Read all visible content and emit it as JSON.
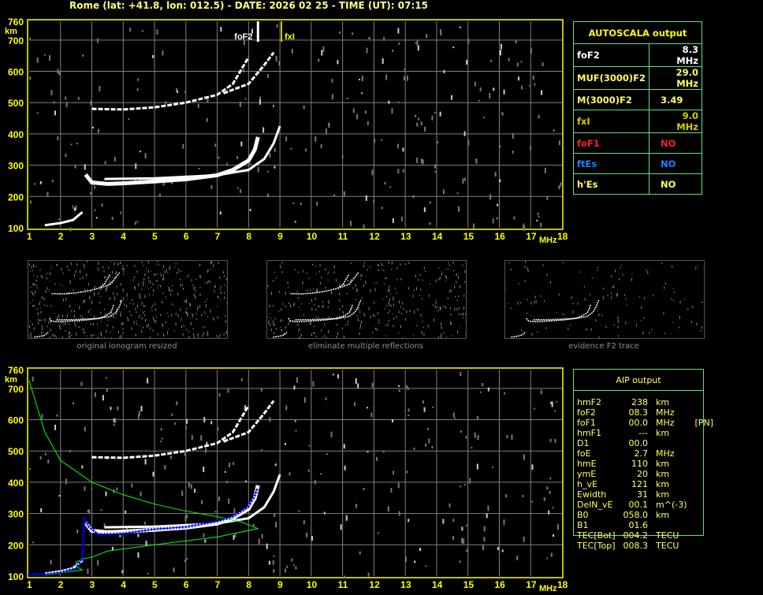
{
  "title": "Rome (lat: +41.8, lon: 012.5) - DATE: 2026 02 25 - TIME (UT): 07:15",
  "colors": {
    "axis": "#ffff00",
    "grid": "#808080",
    "trace": "#ffffff",
    "profile": "#00ff00",
    "aip_trace": "#0000ff"
  },
  "autoscala": {
    "header": "AUTOSCALA output",
    "rows": [
      {
        "label": "foF2",
        "value": "8.3 MHz",
        "color": "#ffffff"
      },
      {
        "label": "MUF(3000)F2",
        "value": "29.0 MHz",
        "color": "#ffff60"
      },
      {
        "label": "M(3000)F2",
        "value": "3.49",
        "color": "#ffff60"
      },
      {
        "label": "fxI",
        "value": "9.0 MHz",
        "color": "#d0d000"
      },
      {
        "label": "foF1",
        "value": "NO",
        "color": "#ff2020"
      },
      {
        "label": "ftEs",
        "value": "NO",
        "color": "#2080ff"
      },
      {
        "label": "h'Es",
        "value": "NO",
        "color": "#ffff60"
      }
    ]
  },
  "aip": {
    "header": "AIP output",
    "rows": [
      [
        "hmF2",
        "238",
        "km",
        ""
      ],
      [
        "foF2",
        "08.3",
        "MHz",
        ""
      ],
      [
        "foF1",
        "00.0",
        "MHz",
        "[PN]"
      ],
      [
        "hmF1",
        "---",
        "km",
        ""
      ],
      [
        "D1",
        "00.0",
        "",
        ""
      ],
      [
        "foE",
        "2.7",
        "MHz",
        ""
      ],
      [
        "hmE",
        "110",
        "km",
        ""
      ],
      [
        "ymE",
        "20",
        "km",
        ""
      ],
      [
        "h_vE",
        "121",
        "km",
        ""
      ],
      [
        "Ewidth",
        "31",
        "km",
        ""
      ],
      [
        "DelN_vE",
        "00.1",
        "m^(-3)",
        ""
      ],
      [
        "B0",
        "058.0",
        "km",
        ""
      ],
      [
        "B1",
        "01.6",
        "",
        ""
      ],
      [
        "TEC[Bot]",
        "004.2",
        "TECU",
        ""
      ],
      [
        "TEC[Top]",
        "008.3",
        "TECU",
        ""
      ]
    ]
  },
  "thumbnails": [
    {
      "caption": "original ionogram resized"
    },
    {
      "caption": "eliminate multiple reflections"
    },
    {
      "caption": "evidence F2 trace"
    }
  ],
  "chart_data": {
    "type": "scatter",
    "xlabel": "MHz",
    "ylabel": "km",
    "xlim": [
      1,
      18
    ],
    "ylim": [
      100,
      760
    ],
    "xticks": [
      "1",
      "2",
      "3",
      "4",
      "5",
      "6",
      "7",
      "8",
      "9",
      "10",
      "11",
      "12",
      "13",
      "14",
      "15",
      "16",
      "17",
      "18"
    ],
    "yticks": [
      "100",
      "200",
      "300",
      "400",
      "500",
      "600",
      "700",
      "760"
    ],
    "grid": true,
    "markers": [
      {
        "label": "foF2",
        "x": 8.3
      },
      {
        "label": "fxI",
        "x": 9.0
      }
    ],
    "traces": {
      "o_f2": [
        [
          2.8,
          270
        ],
        [
          3,
          245
        ],
        [
          3.5,
          240
        ],
        [
          4,
          242
        ],
        [
          5,
          248
        ],
        [
          6,
          255
        ],
        [
          7,
          268
        ],
        [
          7.5,
          285
        ],
        [
          8,
          315
        ],
        [
          8.2,
          350
        ],
        [
          8.3,
          390
        ]
      ],
      "x_f2": [
        [
          3.4,
          256
        ],
        [
          5,
          258
        ],
        [
          7,
          268
        ],
        [
          8,
          285
        ],
        [
          8.5,
          320
        ],
        [
          8.8,
          370
        ],
        [
          9,
          425
        ]
      ],
      "second_hop_o": [
        [
          3,
          480
        ],
        [
          4,
          478
        ],
        [
          5,
          485
        ],
        [
          6,
          500
        ],
        [
          7,
          525
        ],
        [
          7.5,
          560
        ],
        [
          8,
          645
        ]
      ],
      "second_hop_x": [
        [
          7.2,
          530
        ],
        [
          8,
          560
        ],
        [
          8.5,
          620
        ],
        [
          8.8,
          660
        ]
      ],
      "e": [
        [
          1.5,
          108
        ],
        [
          2,
          115
        ],
        [
          2.4,
          125
        ],
        [
          2.7,
          150
        ]
      ]
    },
    "profile": [
      [
        1,
        725
      ],
      [
        1.5,
        560
      ],
      [
        2,
        470
      ],
      [
        3,
        400
      ],
      [
        4,
        360
      ],
      [
        5,
        330
      ],
      [
        6,
        308
      ],
      [
        7,
        290
      ],
      [
        7.8,
        272
      ],
      [
        8.3,
        252
      ],
      [
        7,
        225
      ],
      [
        5,
        200
      ],
      [
        3.5,
        180
      ],
      [
        3,
        160
      ],
      [
        2.7,
        155
      ],
      [
        2.5,
        145
      ],
      [
        2.5,
        130
      ],
      [
        2.7,
        120
      ],
      [
        2,
        110
      ],
      [
        1.5,
        103
      ]
    ],
    "aip_trace": [
      [
        1,
        105
      ],
      [
        1.5,
        106
      ],
      [
        2,
        112
      ],
      [
        2.5,
        125
      ],
      [
        2.7,
        160
      ],
      [
        2.75,
        285
      ],
      [
        2.9,
        258
      ],
      [
        3.2,
        233
      ],
      [
        4,
        236
      ],
      [
        5,
        250
      ],
      [
        6,
        257
      ],
      [
        7,
        275
      ],
      [
        7.5,
        290
      ],
      [
        8,
        322
      ],
      [
        8.2,
        358
      ],
      [
        8.3,
        385
      ]
    ]
  }
}
